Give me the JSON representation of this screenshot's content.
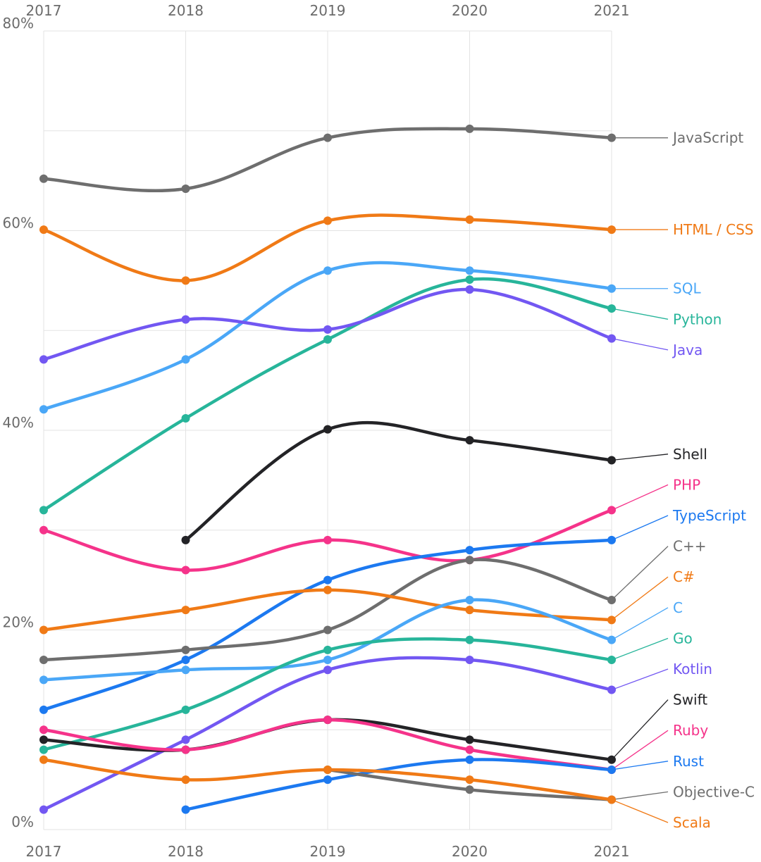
{
  "chart_data": {
    "type": "line",
    "title": "",
    "xlabel": "",
    "ylabel": "",
    "x": [
      2017,
      2018,
      2019,
      2020,
      2021
    ],
    "x_tick_labels": [
      "2017",
      "2018",
      "2019",
      "2020",
      "2021"
    ],
    "y_tick_labels": [
      "0%",
      "20%",
      "40%",
      "60%",
      "80%"
    ],
    "ylim": [
      0,
      80
    ],
    "grid": true,
    "series": [
      {
        "name": "JavaScript",
        "color": "#6e6e6e",
        "values": [
          65.2,
          64.2,
          69.3,
          70.2,
          69.3
        ]
      },
      {
        "name": "HTML / CSS",
        "color": "#f07a16",
        "values": [
          60.1,
          55.0,
          61.0,
          61.1,
          60.1
        ]
      },
      {
        "name": "SQL",
        "color": "#4aa7f7",
        "values": [
          42.1,
          47.1,
          56.0,
          56.0,
          54.2
        ]
      },
      {
        "name": "Python",
        "color": "#27b59a",
        "values": [
          32.0,
          41.2,
          49.1,
          55.1,
          52.2
        ]
      },
      {
        "name": "Java",
        "color": "#7257f2",
        "values": [
          47.1,
          51.1,
          50.1,
          54.1,
          49.2
        ]
      },
      {
        "name": "Shell",
        "color": "#232326",
        "values": [
          null,
          29.0,
          40.1,
          39.0,
          37.0
        ]
      },
      {
        "name": "PHP",
        "color": "#f5338a",
        "values": [
          30.0,
          26.0,
          29.0,
          27.0,
          32.0
        ]
      },
      {
        "name": "TypeScript",
        "color": "#1c79f0",
        "values": [
          12.0,
          17.0,
          25.0,
          28.0,
          29.0
        ]
      },
      {
        "name": "C++",
        "color": "#6e6e6e",
        "values": [
          17.0,
          18.0,
          20.0,
          27.0,
          23.0
        ]
      },
      {
        "name": "C#",
        "color": "#f07a16",
        "values": [
          20.0,
          22.0,
          24.0,
          22.0,
          21.0
        ]
      },
      {
        "name": "C",
        "color": "#4aa7f7",
        "values": [
          15.0,
          16.0,
          17.0,
          23.0,
          19.0
        ]
      },
      {
        "name": "Go",
        "color": "#27b59a",
        "values": [
          8.0,
          12.0,
          18.0,
          19.0,
          17.0
        ]
      },
      {
        "name": "Kotlin",
        "color": "#7257f2",
        "values": [
          2.0,
          9.0,
          16.0,
          17.0,
          14.0
        ]
      },
      {
        "name": "Swift",
        "color": "#232326",
        "values": [
          9.0,
          8.0,
          11.0,
          9.0,
          7.0
        ]
      },
      {
        "name": "Ruby",
        "color": "#f5338a",
        "values": [
          10.0,
          8.0,
          11.0,
          8.0,
          6.0
        ]
      },
      {
        "name": "Rust",
        "color": "#1c79f0",
        "values": [
          null,
          2.0,
          5.0,
          7.0,
          6.0
        ]
      },
      {
        "name": "Objective-C",
        "color": "#6e6e6e",
        "values": [
          null,
          null,
          6.0,
          4.0,
          3.0
        ]
      },
      {
        "name": "Scala",
        "color": "#f07a16",
        "values": [
          7.0,
          5.0,
          6.0,
          5.0,
          3.0
        ]
      }
    ]
  }
}
